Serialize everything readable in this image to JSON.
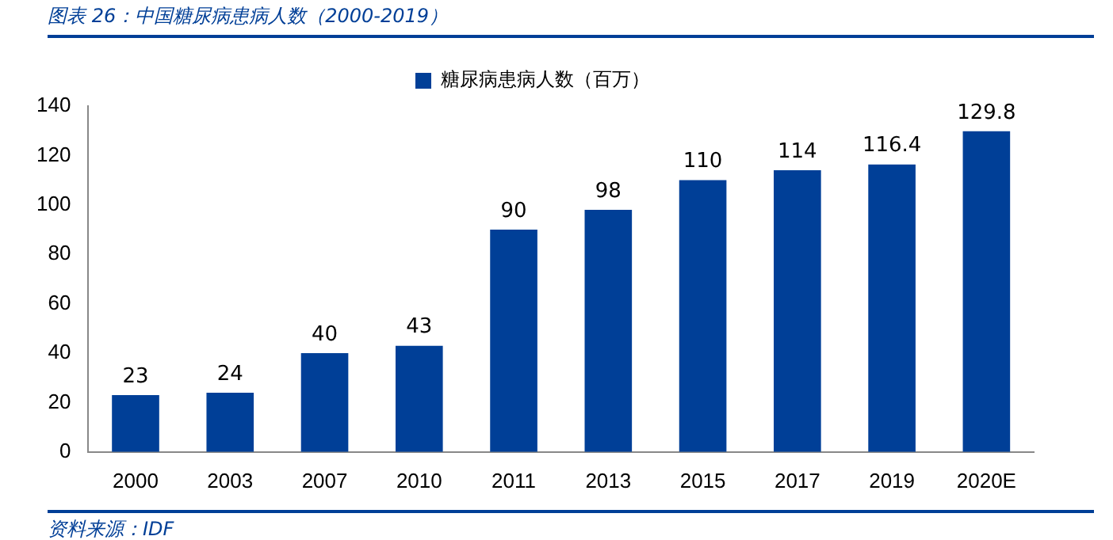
{
  "chart_data": {
    "type": "bar",
    "title": "图表 26：中国糖尿病患病人数（2000-2019）",
    "categories": [
      "2000",
      "2003",
      "2007",
      "2010",
      "2011",
      "2013",
      "2015",
      "2017",
      "2019",
      "2020E"
    ],
    "series": [
      {
        "name": "糖尿病患病人数（百万）",
        "color": "#003f97",
        "values": [
          23,
          24,
          40,
          43,
          90,
          98,
          110,
          114,
          116.4,
          129.8
        ]
      }
    ],
    "ylim": [
      0,
      140
    ],
    "yticks": [
      0,
      20,
      40,
      60,
      80,
      100,
      120,
      140
    ],
    "data_labels": true,
    "legend": "top",
    "annotations": [
      "资料来源：IDF"
    ]
  }
}
